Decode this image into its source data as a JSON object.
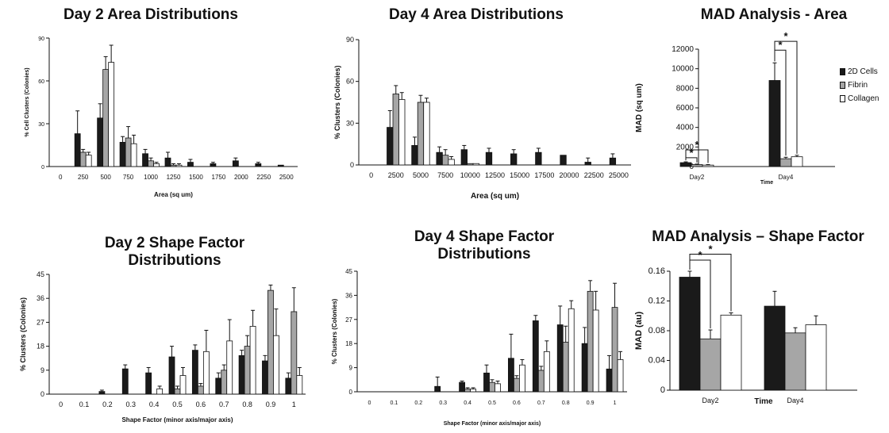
{
  "chart_data": [
    {
      "type": "bar",
      "title": "Day 2 Area Distributions",
      "xlabel": "Area (sq um)",
      "ylabel": "% Cell Clusters (Colonies)",
      "ylim": [
        0,
        90
      ],
      "yticks": [
        "0",
        "30",
        "60",
        "90"
      ],
      "categories": [
        "0",
        "250",
        "500",
        "750",
        "1000",
        "1250",
        "1500",
        "1750",
        "2000",
        "2250",
        "2500"
      ],
      "series": [
        {
          "values": [
            0,
            23,
            34,
            17,
            9,
            6,
            3,
            2,
            4,
            2,
            1
          ],
          "errors": [
            0,
            16,
            10,
            4,
            3,
            4,
            2,
            1,
            2,
            1,
            0
          ]
        },
        {
          "values": [
            0,
            10,
            68,
            20,
            4,
            1,
            0,
            0,
            0,
            0,
            0
          ],
          "errors": [
            0,
            2,
            9,
            8,
            2,
            1,
            0,
            0,
            0,
            0,
            0
          ]
        },
        {
          "values": [
            0,
            8,
            73,
            16,
            2,
            1,
            0,
            0,
            0,
            0,
            0
          ],
          "errors": [
            0,
            2,
            12,
            6,
            1,
            1,
            0,
            0,
            0,
            0,
            0
          ]
        }
      ]
    },
    {
      "type": "bar",
      "title": "Day 4 Area Distributions",
      "xlabel": "Area (sq um)",
      "ylabel": "% Clusters (Colonies)",
      "ylim": [
        0,
        90
      ],
      "yticks": [
        "0",
        "30",
        "60",
        "90"
      ],
      "categories": [
        "0",
        "2500",
        "5000",
        "7500",
        "10000",
        "12500",
        "15000",
        "17500",
        "20000",
        "22500",
        "25000"
      ],
      "series": [
        {
          "values": [
            0,
            27,
            14,
            9,
            11,
            9,
            8,
            9,
            7,
            2,
            5
          ],
          "errors": [
            0,
            12,
            6,
            4,
            3,
            3,
            3,
            3,
            0,
            3,
            3
          ]
        },
        {
          "values": [
            0,
            51,
            45,
            7,
            1,
            0,
            0,
            0,
            0,
            0,
            0
          ],
          "errors": [
            0,
            6,
            5,
            4,
            0,
            0,
            0,
            0,
            0,
            0,
            0
          ]
        },
        {
          "values": [
            0,
            47,
            45,
            4,
            1,
            0,
            0,
            0,
            0,
            0,
            0
          ],
          "errors": [
            0,
            5,
            3,
            2,
            0,
            0,
            0,
            0,
            0,
            0,
            0
          ]
        }
      ]
    },
    {
      "type": "bar",
      "title": "MAD Analysis - Area",
      "xlabel": "Time",
      "ylabel": "MAD (sq um)",
      "ylim": [
        0,
        12000
      ],
      "yticks": [
        "0",
        "2000",
        "4000",
        "6000",
        "8000",
        "10000",
        "12000"
      ],
      "categories": [
        "Day2",
        "Day4"
      ],
      "legend": [
        "2D Cells",
        "Fibrin",
        "Collagen"
      ],
      "legend_position": "right",
      "significance": "*",
      "series": [
        {
          "name": "2D Cells",
          "values": [
            400,
            8800
          ],
          "errors": [
            80,
            1800
          ]
        },
        {
          "name": "Fibrin",
          "values": [
            200,
            800
          ],
          "errors": [
            50,
            150
          ]
        },
        {
          "name": "Collagen",
          "values": [
            150,
            1000
          ],
          "errors": [
            50,
            150
          ]
        }
      ]
    },
    {
      "type": "bar",
      "title": "Day 2 Shape Factor Distributions",
      "xlabel": "Shape Factor (minor axis/major axis)",
      "ylabel": "% Clusters (Colonies)",
      "ylim": [
        0,
        45
      ],
      "yticks": [
        "0",
        "9",
        "18",
        "27",
        "36",
        "45"
      ],
      "categories": [
        "0",
        "0.1",
        "0.2",
        "0.3",
        "0.4",
        "0.5",
        "0.6",
        "0.7",
        "0.8",
        "0.9",
        "1"
      ],
      "series": [
        {
          "values": [
            0,
            0,
            1,
            9.5,
            8,
            14,
            16.5,
            6,
            14.5,
            12.5,
            6
          ],
          "errors": [
            0,
            0,
            0.5,
            1.5,
            2,
            4,
            2,
            2,
            2,
            2,
            2
          ]
        },
        {
          "values": [
            0,
            0,
            0,
            0,
            0,
            2,
            3,
            9,
            18,
            39,
            31
          ],
          "errors": [
            0,
            0,
            0,
            0,
            0,
            1,
            1,
            2,
            4,
            2,
            9
          ]
        },
        {
          "values": [
            0,
            0,
            0,
            0,
            2,
            7,
            16,
            20,
            25.5,
            22,
            7
          ],
          "errors": [
            0,
            0,
            0,
            0,
            1,
            3,
            8,
            8,
            6,
            10,
            3
          ]
        }
      ]
    },
    {
      "type": "bar",
      "title": "Day 4 Shape Factor Distributions",
      "xlabel": "Shape Factor (minor axis/major axis)",
      "ylabel": "% Clusters (Colonies)",
      "ylim": [
        0,
        45
      ],
      "yticks": [
        "0",
        "9",
        "18",
        "27",
        "36",
        "45"
      ],
      "categories": [
        "0",
        "0.1",
        "0.2",
        "0.3",
        "0.4",
        "0.5",
        "0.6",
        "0.7",
        "0.8",
        "0.9",
        "1"
      ],
      "series": [
        {
          "values": [
            0,
            0,
            0,
            2,
            3.5,
            7,
            12.5,
            26.5,
            25,
            18,
            8.5
          ],
          "errors": [
            0,
            0,
            0.5,
            3.5,
            0.5,
            3,
            9,
            2,
            7,
            6,
            5
          ]
        },
        {
          "values": [
            0,
            0,
            0,
            0,
            1,
            3.5,
            5,
            8,
            18.5,
            37.5,
            31.5
          ],
          "errors": [
            0,
            0,
            0,
            0,
            0.5,
            1,
            1,
            1.5,
            6,
            4,
            9
          ]
        },
        {
          "values": [
            0,
            0,
            0,
            0,
            1,
            3,
            10,
            15,
            31,
            30.5,
            12
          ],
          "errors": [
            0,
            0,
            0,
            0,
            0.5,
            1,
            2,
            4,
            3,
            7,
            3
          ]
        }
      ]
    },
    {
      "type": "bar",
      "title": "MAD Analysis – Shape Factor",
      "xlabel": "Time",
      "ylabel": "MAD (au)",
      "ylim": [
        0,
        0.16
      ],
      "yticks": [
        "0",
        "0.04",
        "0.08",
        "0.12",
        "0.16"
      ],
      "categories": [
        "Day2",
        "Day4"
      ],
      "significance": "*",
      "series": [
        {
          "name": "2D Cells",
          "values": [
            0.152,
            0.113
          ],
          "errors": [
            0.008,
            0.02
          ]
        },
        {
          "name": "Fibrin",
          "values": [
            0.069,
            0.077
          ],
          "errors": [
            0.012,
            0.007
          ]
        },
        {
          "name": "Collagen",
          "values": [
            0.101,
            0.088
          ],
          "errors": [
            0.003,
            0.012
          ]
        }
      ]
    }
  ],
  "colors": {
    "series": [
      "#1a1a1a",
      "#a6a6a6",
      "#ffffff"
    ],
    "stroke": "#111111"
  }
}
